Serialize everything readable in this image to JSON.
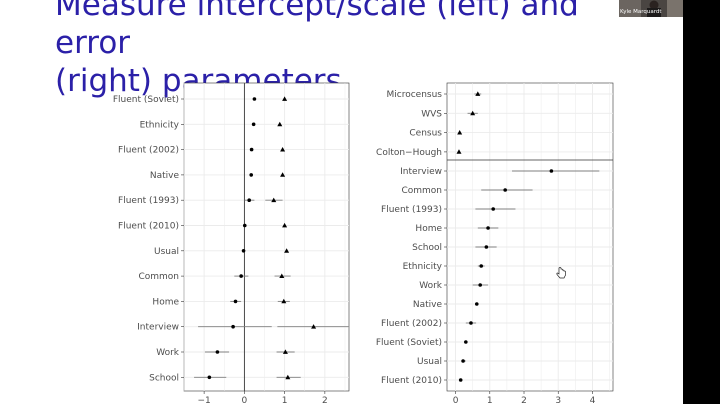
{
  "slide": {
    "title_line1": "Measure intercept/scale (left) and error",
    "title_line2": "(right) parameters"
  },
  "webcam": {
    "name": "Kyle Marquardt"
  },
  "colors": {
    "title": "#2b20a8",
    "panel_border": "#333333",
    "grid": "#ebebeb",
    "point": "#000000",
    "errorbar": "#7f7f7f",
    "label": "#4d4d4d"
  },
  "chart_data": [
    {
      "type": "scatter",
      "title": "",
      "xlabel": "",
      "ylabel": "",
      "xlim": [
        -1.5,
        2.6
      ],
      "xticks": [
        -1,
        0,
        1,
        2
      ],
      "reference_line_x": 0,
      "grid": true,
      "categories": [
        "Fluent (Soviet)",
        "Ethnicity",
        "Fluent (2002)",
        "Native",
        "Fluent (1993)",
        "Fluent (2010)",
        "Usual",
        "Common",
        "Home",
        "Interview",
        "Work",
        "School"
      ],
      "series": [
        {
          "marker": "circle",
          "values": [
            0.25,
            0.23,
            0.18,
            0.17,
            0.12,
            0.01,
            -0.02,
            -0.08,
            -0.22,
            -0.28,
            -0.67,
            -0.87
          ],
          "low": [
            0.25,
            0.23,
            0.18,
            0.17,
            0.0,
            0.01,
            -0.02,
            -0.25,
            -0.35,
            -1.15,
            -0.98,
            -1.25
          ],
          "high": [
            0.25,
            0.23,
            0.18,
            0.17,
            0.25,
            0.01,
            -0.02,
            0.1,
            -0.08,
            0.68,
            -0.38,
            -0.45
          ]
        },
        {
          "marker": "triangle",
          "values": [
            1.0,
            0.88,
            0.95,
            0.95,
            0.73,
            1.0,
            1.05,
            0.93,
            0.98,
            1.72,
            1.02,
            1.08
          ],
          "low": [
            1.0,
            0.88,
            0.95,
            0.95,
            0.52,
            1.0,
            1.05,
            0.75,
            0.83,
            0.82,
            0.8,
            0.8
          ],
          "high": [
            1.0,
            0.88,
            0.95,
            0.95,
            0.95,
            1.0,
            1.05,
            1.15,
            1.13,
            2.6,
            1.25,
            1.4
          ]
        }
      ]
    },
    {
      "type": "scatter",
      "title": "",
      "xlabel": "",
      "ylabel": "",
      "xlim": [
        -0.25,
        4.6
      ],
      "xticks": [
        0,
        1,
        2,
        3,
        4
      ],
      "grid": true,
      "upper_panel": {
        "categories": [
          "Microcensus",
          "WVS",
          "Census",
          "Colton−Hough"
        ],
        "marker": "triangle",
        "values": [
          0.65,
          0.5,
          0.12,
          0.1
        ],
        "low": [
          0.55,
          0.35,
          0.12,
          0.1
        ],
        "high": [
          0.75,
          0.65,
          0.12,
          0.1
        ]
      },
      "lower_panel": {
        "categories": [
          "Interview",
          "Common",
          "Fluent (1993)",
          "Home",
          "School",
          "Ethnicity",
          "Work",
          "Native",
          "Fluent (2002)",
          "Fluent (Soviet)",
          "Usual",
          "Fluent (2010)"
        ],
        "marker": "circle",
        "values": [
          2.8,
          1.45,
          1.1,
          0.95,
          0.9,
          0.75,
          0.72,
          0.62,
          0.45,
          0.3,
          0.22,
          0.15
        ],
        "low": [
          1.65,
          0.75,
          0.58,
          0.65,
          0.58,
          0.65,
          0.5,
          0.62,
          0.3,
          0.3,
          0.18,
          0.15
        ],
        "high": [
          4.2,
          2.25,
          1.75,
          1.25,
          1.2,
          0.85,
          0.95,
          0.62,
          0.6,
          0.3,
          0.3,
          0.15
        ]
      }
    }
  ]
}
